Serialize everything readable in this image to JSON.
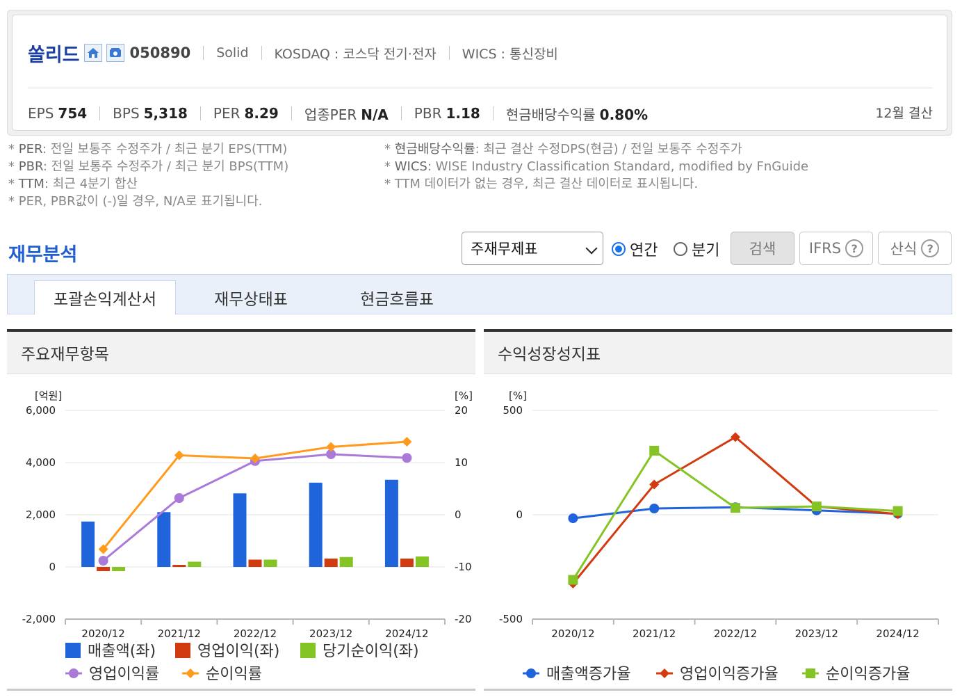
{
  "company": {
    "name": "쏠리드",
    "code": "050890",
    "english": "Solid",
    "market": "KOSDAQ : 코스닥 전기·전자",
    "wics": "WICS : 통신장비",
    "icons": [
      "home-icon",
      "phone-icon"
    ]
  },
  "metrics": [
    {
      "label": "EPS",
      "value": "754"
    },
    {
      "label": "BPS",
      "value": "5,318"
    },
    {
      "label": "PER",
      "value": "8.29"
    },
    {
      "label": "업종PER",
      "value": "N/A"
    },
    {
      "label": "PBR",
      "value": "1.18"
    },
    {
      "label": "현금배당수익률",
      "value": "0.80%"
    }
  ],
  "settlement": "12월 결산",
  "notes_left": [
    {
      "key": "PER",
      "text": ": 전일 보통주 수정주가 / 최근 분기 EPS(TTM)"
    },
    {
      "key": "PBR",
      "text": ": 전일 보통주 수정주가 / 최근 분기 BPS(TTM)"
    },
    {
      "key": "TTM",
      "text": ": 최근 4분기 합산"
    },
    {
      "key": "",
      "text": "PER, PBR값이 (-)일 경우, N/A로 표기됩니다."
    }
  ],
  "notes_right": [
    {
      "key": "현금배당수익률",
      "text": ": 최근 결산 수정DPS(현금) / 전일 보통주 수정주가"
    },
    {
      "key": "WICS",
      "text": ": WISE Industry Classification Standard, modified by FnGuide"
    },
    {
      "key": "",
      "text": "TTM 데이터가 없는 경우, 최근 결산 데이터로 표시됩니다."
    }
  ],
  "section": {
    "title": "재무분석",
    "select_value": "주재무제표",
    "radio_annual": "연간",
    "radio_quarter": "분기",
    "search": "검색",
    "ifrs": "IFRS",
    "formula": "산식",
    "qmark": "?"
  },
  "tabs": [
    "포괄손익계산서",
    "재무상태표",
    "현금흐름표"
  ],
  "panels": {
    "left_title": "주요재무항목",
    "right_title": "수익성장성지표"
  },
  "colors": {
    "revenue": "#2064dc",
    "op_income": "#d23a10",
    "net_income": "#84c424",
    "op_margin": "#a97ad8",
    "net_margin": "#ff9a1c",
    "accent": "#1f5fcf"
  },
  "chart_data": [
    {
      "type": "bar",
      "categories": [
        "2020/12",
        "2021/12",
        "2022/12",
        "2023/12",
        "2024/12"
      ],
      "ylabel": "[억원]",
      "y2label": "[%]",
      "ylim": [
        -2000,
        6000
      ],
      "y2lim": [
        -20,
        20
      ],
      "yticks": [
        "6,000",
        "4,000",
        "2,000",
        "0",
        "-2,000"
      ],
      "y2ticks": [
        "20",
        "10",
        "0",
        "-10",
        "-20"
      ],
      "series": [
        {
          "name": "매출액(좌)",
          "type": "bar",
          "axis": "left",
          "values": [
            1740,
            2100,
            2820,
            3230,
            3340
          ]
        },
        {
          "name": "영업이익(좌)",
          "type": "bar",
          "axis": "left",
          "values": [
            -160,
            80,
            280,
            320,
            320
          ]
        },
        {
          "name": "당기순이익(좌)",
          "type": "bar",
          "axis": "left",
          "values": [
            -160,
            200,
            280,
            380,
            400
          ]
        },
        {
          "name": "영업이익률",
          "type": "line",
          "axis": "right",
          "values": [
            -8.8,
            3.2,
            10.3,
            11.6,
            10.9
          ]
        },
        {
          "name": "순이익률",
          "type": "line",
          "axis": "right",
          "values": [
            -6.6,
            11.4,
            10.8,
            13.0,
            14.0
          ]
        }
      ]
    },
    {
      "type": "line",
      "categories": [
        "2020/12",
        "2021/12",
        "2022/12",
        "2023/12",
        "2024/12"
      ],
      "ylabel": "[%]",
      "ylim": [
        -500,
        500
      ],
      "yticks": [
        "500",
        "0",
        "-500"
      ],
      "series": [
        {
          "name": "매출액증가율",
          "values": [
            -17,
            30,
            36,
            21,
            5
          ]
        },
        {
          "name": "영업이익증가율",
          "values": [
            -330,
            145,
            372,
            40,
            3
          ]
        },
        {
          "name": "순이익증가율",
          "values": [
            -312,
            307,
            33,
            40,
            18
          ]
        }
      ]
    }
  ]
}
